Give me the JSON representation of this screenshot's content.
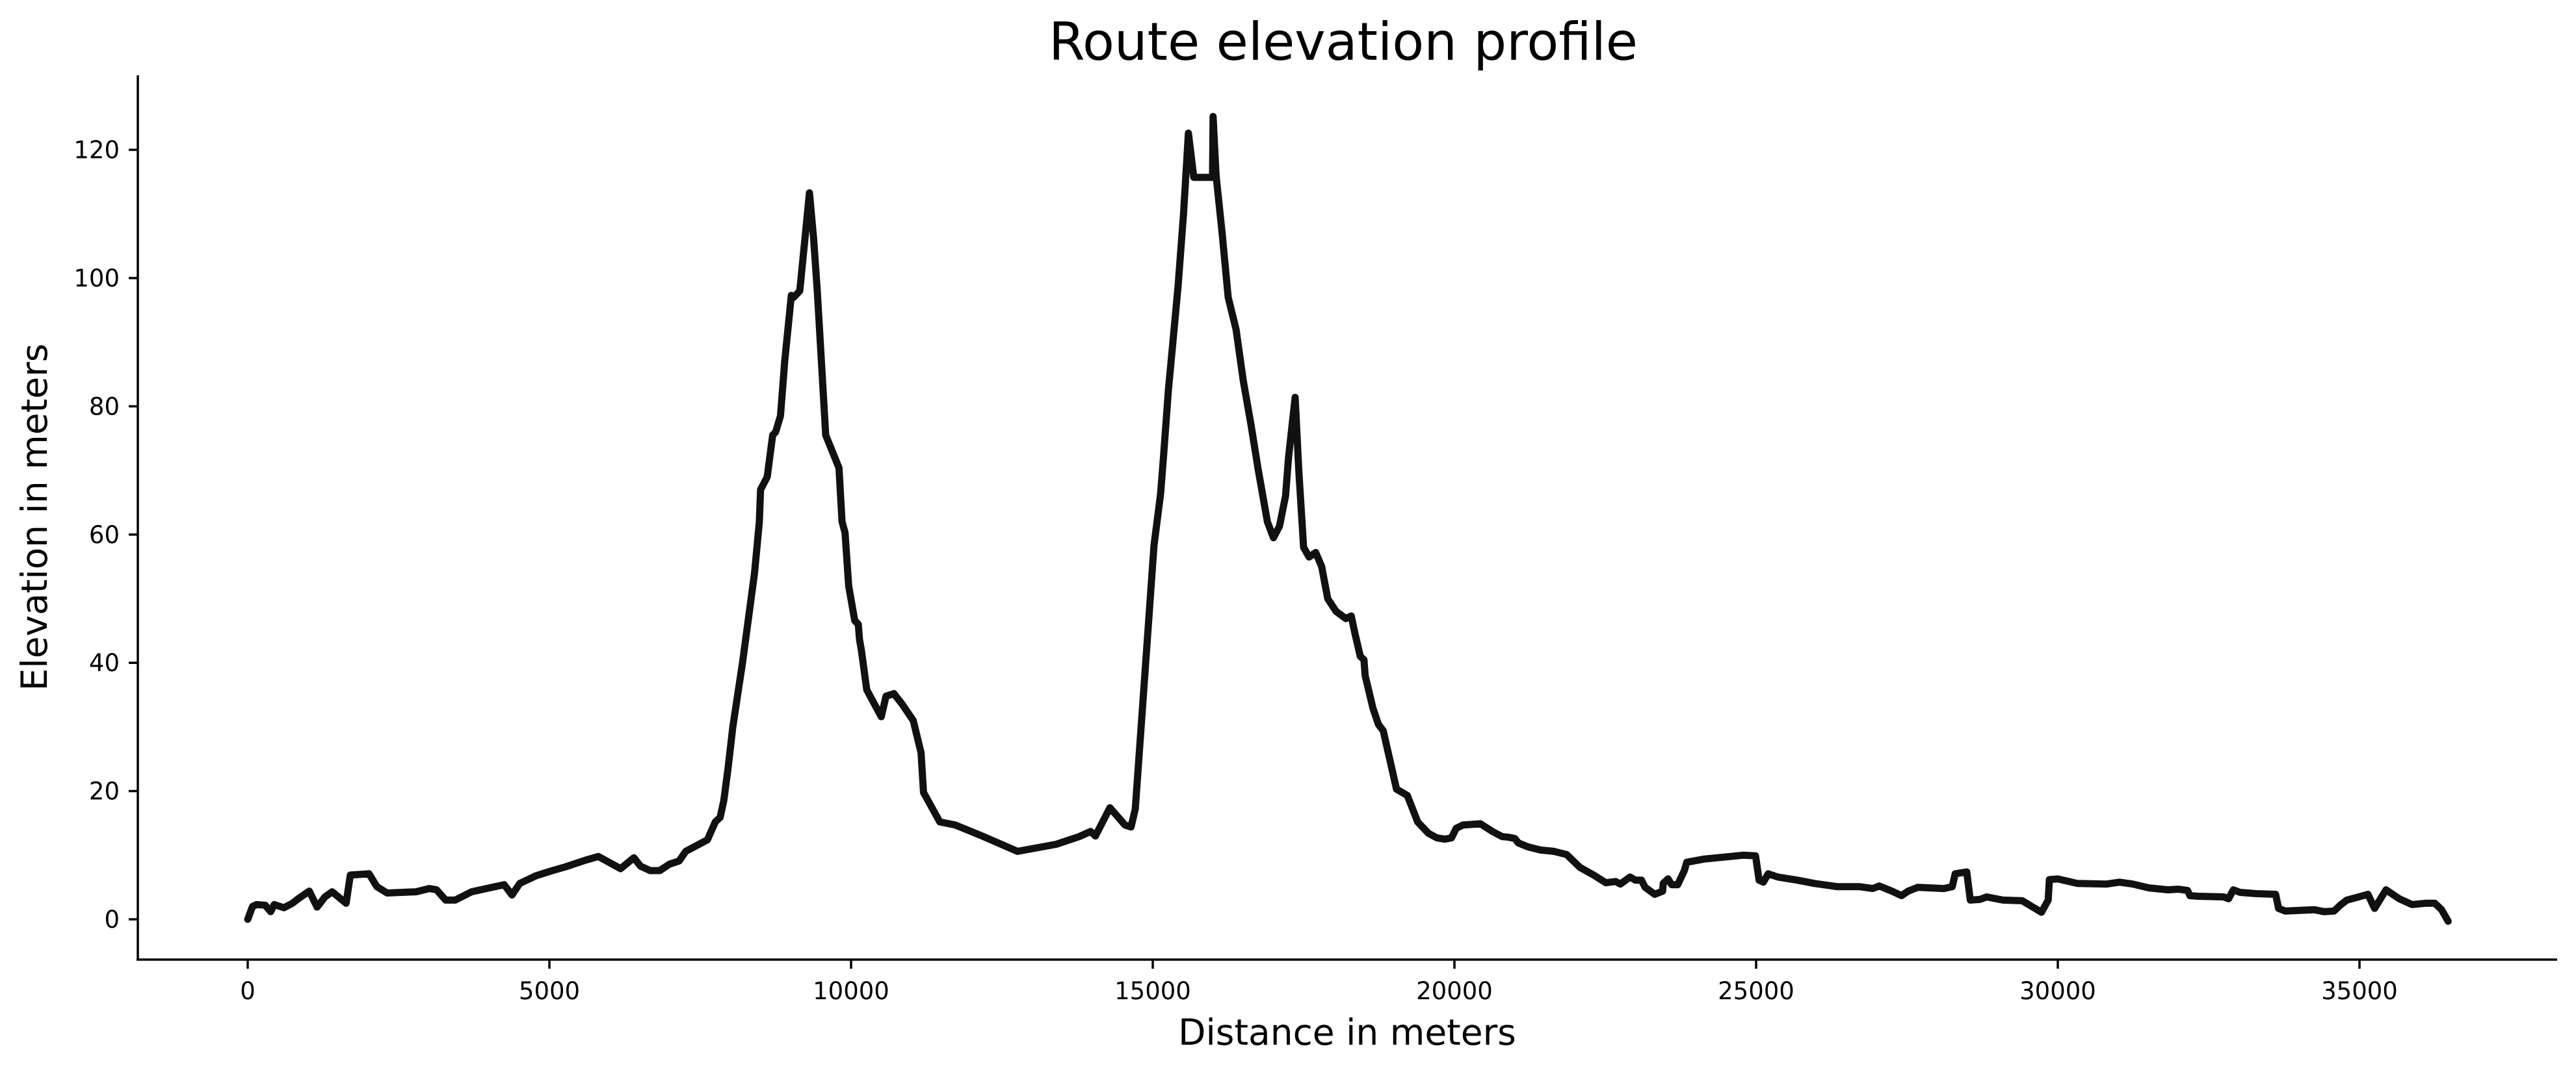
{
  "chart_data": {
    "type": "line",
    "title": "Route elevation profile",
    "xlabel": "Distance in meters",
    "ylabel": "Elevation in meters",
    "xlim": [
      -1800,
      38300
    ],
    "ylim": [
      -6.3,
      131.5
    ],
    "xticks": [
      0,
      5000,
      10000,
      15000,
      20000,
      25000,
      30000,
      35000
    ],
    "xtick_labels": [
      "0",
      "5000",
      "10000",
      "15000",
      "20000",
      "25000",
      "30000",
      "35000"
    ],
    "yticks": [
      0,
      20,
      40,
      60,
      80,
      100,
      120
    ],
    "ytick_labels": [
      "0",
      "20",
      "40",
      "60",
      "80",
      "100",
      "120"
    ],
    "grid": false,
    "legend": null,
    "spines": {
      "top": false,
      "right": false,
      "left": true,
      "bottom": true
    },
    "line_color": "#111111",
    "series": [
      {
        "name": "Elevation",
        "x": [
          0,
          80,
          150,
          290,
          380,
          440,
          600,
          740,
          850,
          1020,
          1150,
          1280,
          1400,
          1630,
          1700,
          2010,
          2140,
          2310,
          2790,
          3010,
          3130,
          3280,
          3440,
          3710,
          4250,
          4380,
          4510,
          4780,
          5050,
          5270,
          5590,
          5810,
          5890,
          6180,
          6400,
          6510,
          6670,
          6830,
          6990,
          7150,
          7260,
          7480,
          7620,
          7750,
          7830,
          7890,
          7960,
          8040,
          8200,
          8400,
          8480,
          8500,
          8610,
          8700,
          8750,
          8830,
          8900,
          9010,
          9050,
          9150,
          9310,
          9380,
          9440,
          9580,
          9800,
          9850,
          9900,
          9960,
          10060,
          10120,
          10140,
          10170,
          10260,
          10500,
          10580,
          10710,
          10850,
          11030,
          11160,
          11200,
          11470,
          11730,
          12170,
          12760,
          13400,
          13780,
          13970,
          14050,
          14290,
          14540,
          14640,
          14710,
          14860,
          15020,
          15130,
          15180,
          15260,
          15340,
          15420,
          15510,
          15590,
          15680,
          15700,
          15990,
          16000,
          16050,
          16150,
          16250,
          16380,
          16500,
          16630,
          16750,
          16900,
          17000,
          17100,
          17200,
          17250,
          17360,
          17420,
          17500,
          17590,
          17700,
          17800,
          17900,
          18040,
          18200,
          18290,
          18350,
          18440,
          18500,
          18520,
          18650,
          18740,
          18820,
          19040,
          19220,
          19390,
          19570,
          19710,
          19840,
          19950,
          20030,
          20140,
          20430,
          20630,
          20790,
          20900,
          21000,
          21060,
          21220,
          21430,
          21650,
          21860,
          21970,
          22080,
          22290,
          22510,
          22670,
          22750,
          22910,
          23000,
          23100,
          23160,
          23320,
          23450,
          23460,
          23540,
          23600,
          23700,
          23810,
          23850,
          24140,
          24570,
          24780,
          24990,
          25050,
          25120,
          25200,
          25360,
          25690,
          25960,
          26340,
          26710,
          26930,
          27040,
          27250,
          27410,
          27520,
          27680,
          28110,
          28250,
          28300,
          28490,
          28550,
          28710,
          28820,
          29090,
          29410,
          29570,
          29730,
          29840,
          29860,
          30000,
          30320,
          30810,
          31020,
          31240,
          31510,
          31830,
          31990,
          32150,
          32190,
          32320,
          32750,
          32830,
          32910,
          33020,
          33290,
          33610,
          33660,
          33770,
          34250,
          34410,
          34580,
          34680,
          34790,
          34950,
          35140,
          35250,
          35440,
          35660,
          35870,
          36090,
          36250,
          36360,
          36470
        ],
        "y": [
          0,
          2,
          2.3,
          2.2,
          1.2,
          2.3,
          1.8,
          2.5,
          3.3,
          4.4,
          1.9,
          3.5,
          4.3,
          2.5,
          6.9,
          7.1,
          5.1,
          4.1,
          4.3,
          4.8,
          4.6,
          3.0,
          3.0,
          4.3,
          5.4,
          3.8,
          5.6,
          6.8,
          7.6,
          8.2,
          9.2,
          9.8,
          9.4,
          7.9,
          9.6,
          8.3,
          7.6,
          7.6,
          8.6,
          9.1,
          10.6,
          11.7,
          12.4,
          15.2,
          15.9,
          18.5,
          23.5,
          30,
          40,
          54,
          62,
          67,
          69,
          75.5,
          76,
          78.5,
          87,
          97.3,
          97,
          98,
          113.3,
          106,
          98,
          75.5,
          70.4,
          62,
          60.3,
          52,
          46.6,
          46,
          43.6,
          42,
          35.8,
          31.6,
          34.8,
          35.2,
          33.5,
          31,
          26,
          19.8,
          15.2,
          14.7,
          13,
          10.6,
          11.7,
          12.9,
          13.7,
          13,
          17.4,
          14.7,
          14.4,
          17.2,
          37,
          58.3,
          66.4,
          72.4,
          82.6,
          90.7,
          98.8,
          110,
          122.6,
          115.7,
          115.7,
          115.7,
          125.2,
          116,
          107,
          97,
          92,
          84,
          77,
          70,
          62,
          59.5,
          61.3,
          66,
          72,
          81.4,
          70,
          58,
          56.5,
          57.2,
          55,
          50,
          48,
          46.9,
          47.3,
          44.6,
          41,
          40.5,
          38,
          32.9,
          30.4,
          29.4,
          20.3,
          19.3,
          15.2,
          13.4,
          12.7,
          12.5,
          12.7,
          14.2,
          14.7,
          14.9,
          13.7,
          12.9,
          12.8,
          12.6,
          11.9,
          11.3,
          10.8,
          10.6,
          10.1,
          9.1,
          8.1,
          7.0,
          5.7,
          5.9,
          5.5,
          6.6,
          6.1,
          6.1,
          5.0,
          3.9,
          4.4,
          5.6,
          6.3,
          5.4,
          5.4,
          7.6,
          8.9,
          9.4,
          9.8,
          10.0,
          9.9,
          6.1,
          5.8,
          7.1,
          6.6,
          6.1,
          5.6,
          5.1,
          5.1,
          4.8,
          5.2,
          4.4,
          3.7,
          4.4,
          5.0,
          4.8,
          5.1,
          7.1,
          7.4,
          3.0,
          3.1,
          3.5,
          3.0,
          2.9,
          2.0,
          1.1,
          3.0,
          6.2,
          6.3,
          5.6,
          5.5,
          5.8,
          5.5,
          4.9,
          4.6,
          4.7,
          4.5,
          3.7,
          3.6,
          3.5,
          3.2,
          4.6,
          4.2,
          4.0,
          3.9,
          1.7,
          1.3,
          1.5,
          1.2,
          1.3,
          2.2,
          3.0,
          3.4,
          3.9,
          1.7,
          4.6,
          3.2,
          2.3,
          2.5,
          2.5,
          1.5,
          -0.3
        ]
      }
    ]
  }
}
